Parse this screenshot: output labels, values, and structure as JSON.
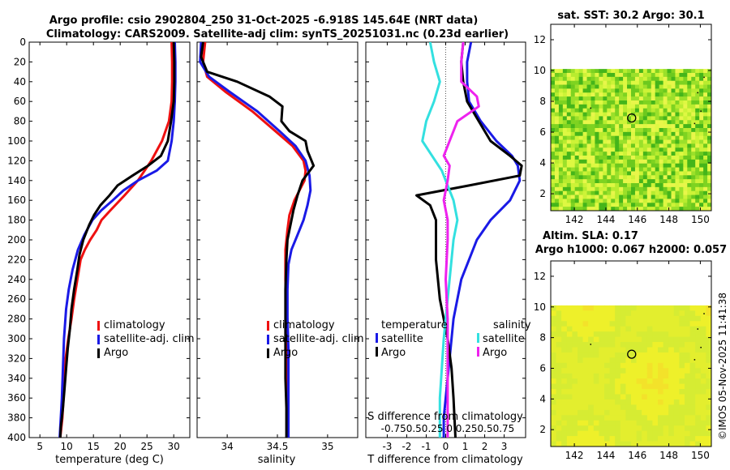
{
  "titles": {
    "line1": "Argo profile: csio 2902804_250 31-Oct-2025 -6.918S 145.64E (NRT data)",
    "line2": "Climatology: CARS2009. Satellite-adj clim: synTS_20251031.nc (0.23d earlier)",
    "map1": "sat. SST: 30.2 Argo: 30.1",
    "map2a": "Altim. SLA: 0.17",
    "map2b": "Argo h1000: 0.067 h2000: 0.057",
    "stamp": "©IMOS 05-Nov-2025 11:41:38"
  },
  "colors": {
    "climatology": "#ee1111",
    "satellite": "#1a1ae6",
    "argo": "#000000",
    "sal_satellite": "#33e0e0",
    "sal_argo": "#ee22ee"
  },
  "chart_data": [
    {
      "type": "line",
      "id": "temperature",
      "xlabel": "temperature (deg C)",
      "ylabel": "",
      "xlim": [
        3,
        33
      ],
      "ylim": [
        400,
        0
      ],
      "xticks": [
        5,
        10,
        15,
        20,
        25,
        30
      ],
      "yticks": [
        0,
        20,
        40,
        60,
        80,
        100,
        120,
        140,
        160,
        180,
        200,
        220,
        240,
        260,
        280,
        300,
        320,
        340,
        360,
        380,
        400
      ],
      "legend": [
        "climatology",
        "satellite-adj. clim",
        "Argo"
      ],
      "series": [
        {
          "name": "climatology",
          "color_key": "climatology",
          "x": [
            29.6,
            29.7,
            29.7,
            29.6,
            29.1,
            27.8,
            25.8,
            23.3,
            20.8,
            18.2,
            16.5,
            15.6,
            14.4,
            13.4,
            12.6,
            12.0,
            11.4,
            10.9,
            10.3,
            9.8,
            9.6,
            9.4,
            9.2,
            8.8
          ],
          "y": [
            0,
            20,
            40,
            60,
            80,
            100,
            120,
            140,
            155,
            170,
            180,
            190,
            200,
            210,
            220,
            240,
            260,
            280,
            300,
            320,
            340,
            360,
            380,
            400
          ]
        },
        {
          "name": "satellite-adj. clim",
          "color_key": "satellite",
          "x": [
            30.2,
            30.3,
            30.3,
            30.2,
            30.0,
            29.6,
            28.9,
            26.8,
            23.3,
            20.6,
            18.6,
            16.5,
            14.8,
            13.3,
            12.1,
            11.1,
            10.4,
            9.9,
            9.5,
            9.3,
            9.1,
            8.7
          ],
          "y": [
            0,
            20,
            40,
            60,
            80,
            100,
            120,
            130,
            140,
            150,
            160,
            170,
            180,
            195,
            210,
            230,
            250,
            270,
            300,
            330,
            360,
            400
          ]
        },
        {
          "name": "Argo",
          "color_key": "argo",
          "x": [
            30.0,
            30.1,
            30.1,
            30.0,
            29.5,
            28.9,
            27.6,
            25.2,
            22.3,
            19.5,
            18.0,
            16.3,
            15.1,
            14.2,
            13.1,
            12.4,
            12.0,
            11.4,
            10.9,
            10.6,
            10.2,
            9.9,
            9.6,
            9.3,
            8.9,
            8.8
          ],
          "y": [
            0,
            20,
            40,
            60,
            80,
            100,
            115,
            125,
            135,
            145,
            155,
            165,
            175,
            185,
            200,
            215,
            230,
            250,
            270,
            290,
            310,
            330,
            350,
            370,
            390,
            400
          ]
        }
      ]
    },
    {
      "type": "line",
      "id": "salinity",
      "xlabel": "salinity",
      "xlim": [
        33.7,
        35.3
      ],
      "ylim": [
        400,
        0
      ],
      "xticks": [
        34,
        34.5,
        35
      ],
      "legend": [
        "climatology",
        "satellite-adj. clim",
        "Argo"
      ],
      "series": [
        {
          "name": "climatology",
          "color_key": "climatology",
          "x": [
            33.78,
            33.76,
            33.8,
            33.98,
            34.25,
            34.48,
            34.65,
            34.76,
            34.78,
            34.77,
            34.72,
            34.67,
            34.62,
            34.6,
            34.58,
            34.58,
            34.59,
            34.59,
            34.59,
            34.6,
            34.6,
            34.6
          ],
          "y": [
            0,
            20,
            35,
            50,
            70,
            90,
            105,
            120,
            130,
            140,
            150,
            160,
            175,
            190,
            210,
            240,
            270,
            300,
            330,
            360,
            380,
            400
          ]
        },
        {
          "name": "satellite-adj. clim",
          "color_key": "satellite",
          "x": [
            33.74,
            33.73,
            33.82,
            34.02,
            34.3,
            34.52,
            34.68,
            34.78,
            34.82,
            34.83,
            34.8,
            34.76,
            34.7,
            34.64,
            34.61,
            34.6,
            34.6,
            34.61,
            34.61,
            34.61,
            34.61,
            34.61
          ],
          "y": [
            0,
            20,
            35,
            50,
            70,
            90,
            105,
            120,
            135,
            150,
            165,
            180,
            195,
            210,
            225,
            250,
            280,
            310,
            340,
            370,
            390,
            400
          ]
        },
        {
          "name": "Argo",
          "color_key": "argo",
          "x": [
            33.76,
            33.74,
            33.8,
            34.1,
            34.42,
            34.55,
            34.54,
            34.62,
            34.78,
            34.8,
            34.86,
            34.75,
            34.7,
            34.66,
            34.63,
            34.6,
            34.59,
            34.58,
            34.58,
            34.58,
            34.58,
            34.59,
            34.59,
            34.59
          ],
          "y": [
            0,
            15,
            30,
            40,
            55,
            65,
            80,
            90,
            100,
            110,
            125,
            140,
            155,
            170,
            185,
            200,
            220,
            250,
            280,
            310,
            340,
            370,
            390,
            400
          ]
        }
      ]
    },
    {
      "type": "line",
      "id": "differences",
      "xlabel": "T difference from climatology",
      "xlabel_top": "S difference from climatology",
      "xlim": [
        -4.1,
        4.1
      ],
      "ylim": [
        400,
        0
      ],
      "xticks": [
        -3,
        -2,
        -1,
        0,
        1,
        2,
        3
      ],
      "xticklabels": [
        "-3",
        "-2",
        "-1",
        "0",
        "1",
        "2",
        "3"
      ],
      "xticklabels_top": "-0.750.50.25 0 0.250.50.75",
      "legend_left_title": "temperature",
      "legend_right_title": "salinity",
      "legend_left": [
        "satellite",
        "Argo"
      ],
      "legend_right": [
        "satellite",
        "Argo"
      ],
      "series": [
        {
          "name": "T satellite",
          "color_key": "satellite",
          "x": [
            1.3,
            1.1,
            1.1,
            1.2,
            1.8,
            2.6,
            3.4,
            3.7,
            3.8,
            3.3,
            2.3,
            1.6,
            1.2,
            0.8,
            0.6,
            0.4,
            0.3,
            0.2,
            0.1,
            0.0,
            -0.1,
            -0.1
          ],
          "y": [
            0,
            20,
            40,
            60,
            80,
            100,
            115,
            125,
            140,
            160,
            180,
            200,
            220,
            240,
            260,
            280,
            300,
            320,
            340,
            360,
            380,
            400
          ]
        },
        {
          "name": "T Argo",
          "color_key": "argo",
          "x": [
            0.9,
            0.8,
            0.9,
            1.1,
            1.7,
            2.3,
            3.3,
            3.9,
            3.8,
            1.2,
            -1.5,
            -0.8,
            -0.5,
            -0.5,
            -0.5,
            -0.4,
            -0.3,
            -0.1,
            0.1,
            0.3,
            0.4,
            0.5
          ],
          "y": [
            0,
            20,
            40,
            60,
            80,
            100,
            115,
            125,
            135,
            145,
            155,
            165,
            180,
            200,
            220,
            240,
            260,
            280,
            300,
            330,
            360,
            400
          ]
        },
        {
          "name": "S satellite",
          "color_key": "sal_satellite",
          "x": [
            -0.8,
            -0.6,
            -0.3,
            -0.6,
            -1.0,
            -1.2,
            -0.7,
            -0.2,
            0.1,
            0.4,
            0.6,
            0.4,
            0.3,
            0.2,
            0.1,
            0.0,
            -0.1,
            -0.2,
            -0.3,
            -0.3
          ],
          "y": [
            0,
            20,
            40,
            60,
            80,
            100,
            115,
            130,
            145,
            160,
            180,
            200,
            220,
            240,
            260,
            280,
            300,
            330,
            360,
            400
          ]
        },
        {
          "name": "S Argo",
          "color_key": "sal_argo",
          "x": [
            0.9,
            0.8,
            0.8,
            1.6,
            1.7,
            0.6,
            0.2,
            -0.1,
            0.2,
            0.1,
            -0.1,
            0.1,
            0.1,
            0.0,
            0.1,
            0.1,
            0.1,
            0.1
          ],
          "y": [
            0,
            20,
            40,
            55,
            65,
            80,
            100,
            115,
            125,
            140,
            160,
            180,
            200,
            240,
            280,
            320,
            360,
            400
          ]
        }
      ]
    },
    {
      "type": "heatmap",
      "id": "sst_map",
      "title": "sat. SST: 30.2 Argo: 30.1",
      "xlim": [
        140.5,
        150.7
      ],
      "ylim": [
        0.9,
        13
      ],
      "xticks": [
        142,
        144,
        146,
        148,
        150
      ],
      "yticks": [
        2,
        4,
        6,
        8,
        10,
        12
      ],
      "data_ylim": [
        0.9,
        10.1
      ],
      "argo_position": [
        145.64,
        6.918
      ],
      "palette": [
        "#7ed321",
        "#9be02a",
        "#b8ec2f",
        "#cdf337",
        "#def842",
        "#6cc91e",
        "#45b51a",
        "#e8f64a"
      ]
    },
    {
      "type": "heatmap",
      "id": "sla_map",
      "title": "Altim. SLA: 0.17",
      "subtitle": "Argo h1000: 0.067 h2000: 0.057",
      "xlim": [
        140.5,
        150.7
      ],
      "ylim": [
        0.9,
        13
      ],
      "xticks": [
        142,
        144,
        146,
        148,
        150
      ],
      "yticks": [
        2,
        4,
        6,
        8,
        10,
        12
      ],
      "data_ylim": [
        0.9,
        10.1
      ],
      "argo_position": [
        145.64,
        6.918
      ],
      "palette": [
        "#e3ee2e",
        "#d6ec33",
        "#eef02a",
        "#f3e22a"
      ]
    }
  ]
}
